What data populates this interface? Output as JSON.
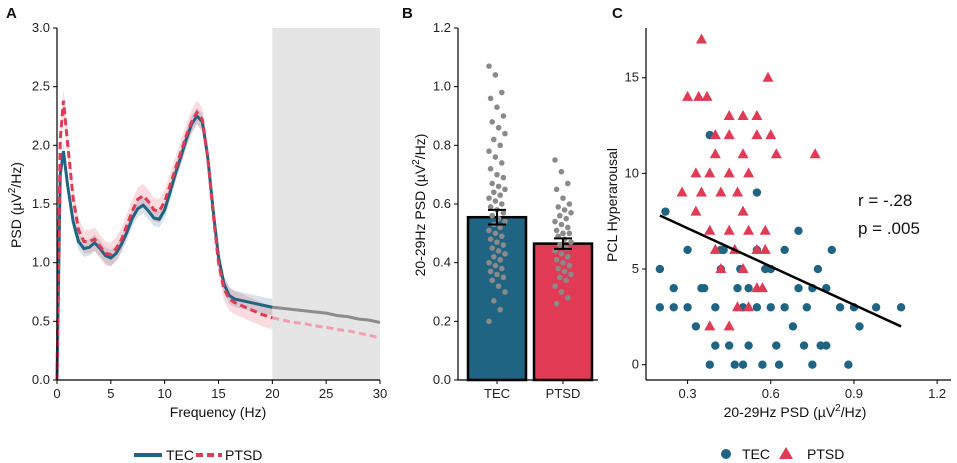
{
  "colors": {
    "tec": "#1f6482",
    "ptsd": "#e03a55",
    "shade": "#e5e5e5",
    "grey_line": "#8c8c8c",
    "dots": "#8a8a8a"
  },
  "chart_data": [
    {
      "panel": "A",
      "type": "line",
      "xlabel": "Frequency (Hz)",
      "ylabel": "PSD (µV²/Hz)",
      "ylabel_parts": {
        "pre": "PSD (",
        "mu": "µV",
        "sup": "2",
        "post": "/Hz)"
      },
      "xlim": [
        0,
        30
      ],
      "ylim": [
        0,
        3.0
      ],
      "xticks": [
        "0",
        "5",
        "10",
        "15",
        "20",
        "25",
        "30"
      ],
      "yticks": [
        "0.0",
        "0.5",
        "1.0",
        "1.5",
        "2.0",
        "2.5",
        "3.0"
      ],
      "shaded_region": [
        20,
        30
      ],
      "series": [
        {
          "name": "TEC",
          "style": "solid",
          "x": [
            0,
            0.3,
            0.6,
            1,
            1.5,
            2,
            2.5,
            3,
            3.5,
            4,
            4.5,
            5,
            5.5,
            6,
            6.5,
            7,
            7.5,
            8,
            8.5,
            9,
            9.5,
            10,
            10.5,
            11,
            11.5,
            12,
            12.5,
            13,
            13.5,
            14,
            14.5,
            15,
            15.5,
            16,
            16.5,
            17,
            18,
            19,
            20,
            21,
            22,
            23,
            24,
            25,
            26,
            27,
            28,
            29,
            30
          ],
          "y": [
            0,
            1.75,
            1.95,
            1.65,
            1.35,
            1.18,
            1.12,
            1.13,
            1.17,
            1.12,
            1.06,
            1.04,
            1.08,
            1.16,
            1.26,
            1.38,
            1.46,
            1.49,
            1.44,
            1.38,
            1.37,
            1.45,
            1.6,
            1.76,
            1.9,
            2.05,
            2.18,
            2.25,
            2.2,
            1.9,
            1.45,
            1.05,
            0.82,
            0.72,
            0.69,
            0.68,
            0.66,
            0.64,
            0.62,
            0.61,
            0.6,
            0.59,
            0.58,
            0.57,
            0.55,
            0.54,
            0.52,
            0.51,
            0.49
          ],
          "band": 0.07
        },
        {
          "name": "PTSD",
          "style": "dashed",
          "x": [
            0,
            0.3,
            0.6,
            1,
            1.5,
            2,
            2.5,
            3,
            3.5,
            4,
            4.5,
            5,
            5.5,
            6,
            6.5,
            7,
            7.5,
            8,
            8.5,
            9,
            9.5,
            10,
            10.5,
            11,
            11.5,
            12,
            12.5,
            13,
            13.5,
            14,
            14.5,
            15,
            15.5,
            16,
            16.5,
            17,
            18,
            19,
            20,
            21,
            22,
            23,
            24,
            25,
            26,
            27,
            28,
            29,
            30
          ],
          "y": [
            0,
            2.05,
            2.38,
            2.0,
            1.55,
            1.28,
            1.18,
            1.18,
            1.2,
            1.14,
            1.08,
            1.07,
            1.12,
            1.2,
            1.32,
            1.44,
            1.54,
            1.57,
            1.52,
            1.45,
            1.44,
            1.52,
            1.66,
            1.8,
            1.94,
            2.08,
            2.2,
            2.28,
            2.22,
            1.9,
            1.42,
            1.0,
            0.78,
            0.69,
            0.66,
            0.64,
            0.6,
            0.56,
            0.53,
            0.51,
            0.49,
            0.48,
            0.46,
            0.45,
            0.43,
            0.42,
            0.4,
            0.38,
            0.36
          ],
          "band": 0.1
        }
      ],
      "legend": [
        "TEC",
        "PTSD"
      ]
    },
    {
      "panel": "B",
      "type": "bar",
      "categories": [
        "TEC",
        "PTSD"
      ],
      "values": [
        0.555,
        0.465
      ],
      "errors": [
        0.025,
        0.018
      ],
      "ylabel": "20-29Hz PSD (µV²/Hz)",
      "ylabel_parts": {
        "pre": "20-29Hz PSD (",
        "mu": "µV",
        "sup": "2",
        "post": "/Hz)"
      },
      "ylim": [
        0,
        1.2
      ],
      "yticks": [
        "0.0",
        "0.2",
        "0.4",
        "0.6",
        "0.8",
        "1.0",
        "1.2"
      ],
      "points": [
        [
          1.07,
          1.04,
          0.98,
          0.96,
          0.93,
          0.9,
          0.88,
          0.86,
          0.84,
          0.82,
          0.8,
          0.78,
          0.76,
          0.74,
          0.72,
          0.7,
          0.69,
          0.67,
          0.66,
          0.65,
          0.64,
          0.63,
          0.62,
          0.61,
          0.6,
          0.59,
          0.58,
          0.57,
          0.56,
          0.55,
          0.54,
          0.53,
          0.52,
          0.51,
          0.5,
          0.49,
          0.48,
          0.47,
          0.46,
          0.45,
          0.44,
          0.43,
          0.42,
          0.41,
          0.4,
          0.39,
          0.38,
          0.37,
          0.36,
          0.35,
          0.34,
          0.32,
          0.3,
          0.27,
          0.24,
          0.2
        ],
        [
          0.75,
          0.71,
          0.67,
          0.65,
          0.62,
          0.6,
          0.59,
          0.58,
          0.57,
          0.56,
          0.55,
          0.54,
          0.53,
          0.52,
          0.51,
          0.5,
          0.5,
          0.49,
          0.48,
          0.47,
          0.46,
          0.45,
          0.44,
          0.43,
          0.42,
          0.41,
          0.4,
          0.39,
          0.38,
          0.37,
          0.36,
          0.35,
          0.34,
          0.32,
          0.3,
          0.28,
          0.26
        ]
      ]
    },
    {
      "panel": "C",
      "type": "scatter",
      "xlabel": "20-29Hz PSD (µV²/Hz)",
      "xlabel_parts": {
        "pre": "20-29Hz PSD (",
        "mu": "µV",
        "sup": "2",
        "post": "/Hz)"
      },
      "ylabel": "PCL Hyperarousal",
      "xlim": [
        0.15,
        1.25
      ],
      "ylim": [
        -0.8,
        17.6
      ],
      "xticks": [
        "0.3",
        "0.6",
        "0.9",
        "1.2"
      ],
      "yticks": [
        "0",
        "5",
        "10",
        "15"
      ],
      "annotation": {
        "r": "r = -.28",
        "p": "p = .005"
      },
      "fit_line": {
        "x": [
          0.2,
          1.07
        ],
        "y": [
          7.8,
          2.0
        ]
      },
      "series": [
        {
          "name": "TEC",
          "marker": "circle",
          "points": [
            [
              0.22,
              8
            ],
            [
              0.2,
              5
            ],
            [
              0.2,
              3
            ],
            [
              0.25,
              3
            ],
            [
              0.25,
              4
            ],
            [
              0.3,
              6
            ],
            [
              0.3,
              3
            ],
            [
              0.33,
              2
            ],
            [
              0.36,
              4
            ],
            [
              0.38,
              0
            ],
            [
              0.4,
              1
            ],
            [
              0.4,
              3
            ],
            [
              0.42,
              5
            ],
            [
              0.43,
              6
            ],
            [
              0.45,
              1
            ],
            [
              0.48,
              4
            ],
            [
              0.49,
              5
            ],
            [
              0.5,
              3
            ],
            [
              0.52,
              4
            ],
            [
              0.52,
              1
            ],
            [
              0.55,
              6
            ],
            [
              0.55,
              3
            ],
            [
              0.57,
              0
            ],
            [
              0.58,
              5
            ],
            [
              0.6,
              3
            ],
            [
              0.62,
              1
            ],
            [
              0.63,
              0
            ],
            [
              0.65,
              3
            ],
            [
              0.65,
              6
            ],
            [
              0.68,
              2
            ],
            [
              0.7,
              4
            ],
            [
              0.72,
              1
            ],
            [
              0.73,
              3
            ],
            [
              0.75,
              4
            ],
            [
              0.75,
              0
            ],
            [
              0.77,
              5
            ],
            [
              0.78,
              1
            ],
            [
              0.8,
              1
            ],
            [
              0.82,
              6
            ],
            [
              0.85,
              3
            ],
            [
              0.88,
              0
            ],
            [
              0.9,
              3
            ],
            [
              0.92,
              2
            ],
            [
              0.98,
              3
            ],
            [
              1.07,
              3
            ],
            [
              0.38,
              12
            ],
            [
              0.55,
              9
            ],
            [
              0.42,
              6
            ],
            [
              0.47,
              0
            ],
            [
              0.35,
              4
            ],
            [
              0.6,
              5
            ],
            [
              0.7,
              7
            ],
            [
              0.5,
              0
            ],
            [
              0.8,
              4
            ]
          ]
        },
        {
          "name": "PTSD",
          "marker": "triangle",
          "points": [
            [
              0.35,
              17
            ],
            [
              0.3,
              14
            ],
            [
              0.34,
              14
            ],
            [
              0.37,
              14
            ],
            [
              0.45,
              13
            ],
            [
              0.5,
              13
            ],
            [
              0.55,
              13
            ],
            [
              0.59,
              15
            ],
            [
              0.4,
              12
            ],
            [
              0.45,
              12
            ],
            [
              0.55,
              12
            ],
            [
              0.6,
              12
            ],
            [
              0.4,
              11
            ],
            [
              0.5,
              11
            ],
            [
              0.62,
              11
            ],
            [
              0.76,
              11
            ],
            [
              0.33,
              10
            ],
            [
              0.38,
              10
            ],
            [
              0.45,
              10
            ],
            [
              0.52,
              10
            ],
            [
              0.28,
              9
            ],
            [
              0.35,
              9
            ],
            [
              0.42,
              9
            ],
            [
              0.48,
              9
            ],
            [
              0.38,
              7
            ],
            [
              0.45,
              7
            ],
            [
              0.52,
              7
            ],
            [
              0.58,
              7
            ],
            [
              0.4,
              6
            ],
            [
              0.47,
              6
            ],
            [
              0.55,
              6
            ],
            [
              0.58,
              6
            ],
            [
              0.42,
              5
            ],
            [
              0.5,
              5
            ],
            [
              0.55,
              4
            ],
            [
              0.48,
              3
            ],
            [
              0.52,
              3
            ],
            [
              0.45,
              2
            ],
            [
              0.38,
              2
            ],
            [
              0.57,
              4
            ],
            [
              0.33,
              8
            ],
            [
              0.5,
              8
            ]
          ]
        }
      ],
      "legend": [
        "TEC",
        "PTSD"
      ]
    }
  ]
}
